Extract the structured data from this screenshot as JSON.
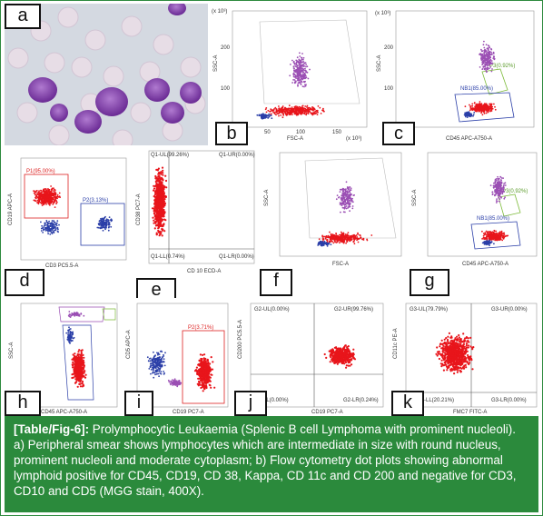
{
  "panels": {
    "a": {
      "label": "a"
    },
    "b": {
      "label": "b",
      "xlabel": "FSC-A",
      "ylabel": "SSC-A",
      "yexp": "(x 10³)",
      "xexp": "(x 10³)",
      "xticks": [
        "50",
        "100",
        "150"
      ],
      "yticks": [
        "100",
        "200"
      ]
    },
    "c": {
      "label": "c",
      "xlabel": "CD45 APC-A750-A",
      "ylabel": "SSC-A",
      "yexp": "(x 10³)",
      "gate1": "P3(0.92%)",
      "gate2": "NB1(85.00%)",
      "yticks": [
        "100",
        "200"
      ]
    },
    "d": {
      "label": "d",
      "xlabel": "CD3 PC5.5-A",
      "ylabel": "CD19 APC-A",
      "gate1": "P1(95.00%)",
      "gate2": "P2(3.13%)"
    },
    "e": {
      "label": "e",
      "xlabel": "CD 10 ECD-A",
      "ylabel": "CD38 PC7-A",
      "q1": "Q1-UL(99.26%)",
      "q2": "Q1-UR(0.00%)",
      "q3": "Q1-LL(0.74%)",
      "q4": "Q1-LR(0.00%)"
    },
    "f": {
      "label": "f",
      "xlabel": "FSC-A",
      "ylabel": "SSC-A"
    },
    "g": {
      "label": "g",
      "xlabel": "CD45 APC-A750-A",
      "ylabel": "SSC-A",
      "gate1": "P3(0.92%)",
      "gate2": "NB1(85.00%)"
    },
    "h": {
      "label": "h",
      "xlabel": "CD45 APC-A750-A",
      "ylabel": "SSC-A"
    },
    "i": {
      "label": "i",
      "xlabel": "CD19 PC7-A",
      "ylabel": "CD5 APC-A",
      "gate1": "P2(3.71%)"
    },
    "j": {
      "label": "j",
      "xlabel": "CD19 PC7-A",
      "ylabel": "CD200 PC5.5-A",
      "q1": "G2-UL(0.00%)",
      "q2": "G2-UR(99.76%)",
      "q3": "G2-LL(0.00%)",
      "q4": "G2-LR(0.24%)"
    },
    "k": {
      "label": "k",
      "xlabel": "FMC7 FITC-A",
      "ylabel": "CD11c PE-A",
      "q1": "G3-UL(79.79%)",
      "q2": "G3-UR(0.00%)",
      "q3": "G3-LL(20.21%)",
      "q4": "G3-LR(0.00%)"
    }
  },
  "caption": {
    "lead": "[Table/Fig-6]:",
    "text": " Prolymphocytic Leukaemia (Splenic B cell Lymphoma with prominent nucleoli). a) Peripheral smear shows lymphocytes which are intermediate in size with round nucleus, prominent nucleoli and moderate cytoplasm; b) Flow cytometry dot plots showing abnormal lymphoid positive for CD45, CD19, CD 38, Kappa, CD 11c and CD 200 and negative for CD3, CD10 and CD5 (MGG stain, 400X)."
  },
  "colors": {
    "dots_red": "#e8151b",
    "dots_purple": "#9b4fb4",
    "dots_blue": "#2b3fa8",
    "caption_bg": "#2b8a3c",
    "gate_green": "#7dbb3a"
  }
}
